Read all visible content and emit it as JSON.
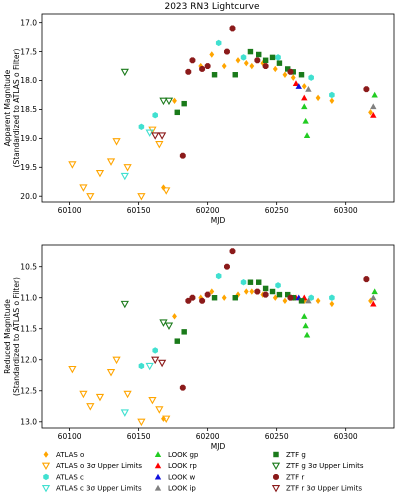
{
  "title": "2023 RN3 Lightcurve",
  "chart_data": [
    {
      "type": "scatter",
      "name": "apparent",
      "xlabel": "MJD",
      "ylabel_lines": [
        "Apparent Magnitude",
        "(Standardized to ATLAS o Filter)"
      ],
      "xlim": [
        60080,
        60335
      ],
      "ylim": [
        20.1,
        16.85
      ],
      "y_inverted": true,
      "x_ticks": [
        60100,
        60150,
        60200,
        60250,
        60300
      ],
      "y_ticks": [
        17.0,
        17.5,
        18.0,
        18.5,
        19.0,
        19.5,
        20.0
      ],
      "y_tick_labels": [
        "17.0",
        "17.5",
        "18.0",
        "18.5",
        "19.0",
        "19.5",
        "20.0"
      ],
      "series": [
        {
          "key": "atlas_o",
          "points": [
            [
              60168,
              19.85
            ],
            [
              60176,
              18.35
            ],
            [
              60195,
              17.75
            ],
            [
              60203,
              17.55
            ],
            [
              60212,
              17.75
            ],
            [
              60222,
              17.65
            ],
            [
              60228,
              17.7
            ],
            [
              60232,
              17.75
            ],
            [
              60240,
              17.7
            ],
            [
              60249,
              17.8
            ],
            [
              60256,
              17.9
            ],
            [
              60262,
              17.95
            ],
            [
              60270,
              18.1
            ],
            [
              60280,
              18.3
            ],
            [
              60290,
              18.35
            ],
            [
              60318,
              18.55
            ]
          ]
        },
        {
          "key": "atlas_o_ul",
          "points": [
            [
              60102,
              19.45
            ],
            [
              60110,
              19.85
            ],
            [
              60115,
              20.0
            ],
            [
              60122,
              19.6
            ],
            [
              60130,
              19.4
            ],
            [
              60134,
              19.05
            ],
            [
              60142,
              19.5
            ],
            [
              60152,
              20.0
            ],
            [
              60160,
              18.85
            ],
            [
              60165,
              19.1
            ],
            [
              60170,
              19.9
            ]
          ]
        },
        {
          "key": "atlas_c",
          "points": [
            [
              60152,
              18.8
            ],
            [
              60162,
              18.6
            ],
            [
              60208,
              17.35
            ],
            [
              60226,
              17.6
            ],
            [
              60251,
              17.6
            ],
            [
              60275,
              17.95
            ],
            [
              60290,
              18.25
            ]
          ]
        },
        {
          "key": "atlas_c_ul",
          "points": [
            [
              60140,
              19.65
            ],
            [
              60158,
              18.9
            ]
          ]
        },
        {
          "key": "look_gp",
          "points": [
            [
              60270,
              18.45
            ],
            [
              60271,
              18.7
            ],
            [
              60272,
              18.95
            ],
            [
              60321,
              18.25
            ]
          ]
        },
        {
          "key": "look_rp",
          "points": [
            [
              60264,
              18.05
            ],
            [
              60270,
              18.3
            ],
            [
              60320,
              18.6
            ]
          ]
        },
        {
          "key": "look_w",
          "points": [
            [
              60266,
              18.1
            ]
          ]
        },
        {
          "key": "look_ip",
          "points": [
            [
              60273,
              18.15
            ],
            [
              60320,
              18.45
            ]
          ]
        },
        {
          "key": "ztf_g",
          "points": [
            [
              60178,
              18.55
            ],
            [
              60183,
              18.4
            ],
            [
              60205,
              17.9
            ],
            [
              60220,
              17.9
            ],
            [
              60231,
              17.5
            ],
            [
              60237,
              17.55
            ],
            [
              60242,
              17.65
            ],
            [
              60247,
              17.6
            ],
            [
              60252,
              17.7
            ],
            [
              60258,
              17.8
            ],
            [
              60262,
              17.85
            ],
            [
              60268,
              17.9
            ]
          ]
        },
        {
          "key": "ztf_g_ul",
          "points": [
            [
              60140,
              17.85
            ],
            [
              60168,
              18.35
            ],
            [
              60172,
              18.35
            ]
          ]
        },
        {
          "key": "ztf_r",
          "points": [
            [
              60182,
              19.3
            ],
            [
              60186,
              17.85
            ],
            [
              60189,
              17.65
            ],
            [
              60196,
              17.8
            ],
            [
              60200,
              17.75
            ],
            [
              60214,
              17.5
            ],
            [
              60218,
              17.1
            ],
            [
              60236,
              17.65
            ],
            [
              60242,
              17.75
            ],
            [
              60260,
              17.85
            ],
            [
              60315,
              18.15
            ]
          ]
        },
        {
          "key": "ztf_r_ul",
          "points": [
            [
              60162,
              18.95
            ],
            [
              60167,
              18.95
            ]
          ]
        }
      ]
    },
    {
      "type": "scatter",
      "name": "reduced",
      "xlabel": "MJD",
      "ylabel_lines": [
        "Reduced Magnitude",
        "(Standardized to ATLAS o Filter)"
      ],
      "xlim": [
        60080,
        60335
      ],
      "ylim": [
        13.1,
        10.15
      ],
      "y_inverted": true,
      "x_ticks": [
        60100,
        60150,
        60200,
        60250,
        60300
      ],
      "y_ticks": [
        10.5,
        11.0,
        11.5,
        12.0,
        12.5,
        13.0
      ],
      "y_tick_labels": [
        "10.5",
        "11.0",
        "11.5",
        "12.0",
        "12.5",
        "13.0"
      ],
      "series": [
        {
          "key": "atlas_o",
          "points": [
            [
              60168,
              12.95
            ],
            [
              60176,
              11.3
            ],
            [
              60195,
              11.0
            ],
            [
              60203,
              10.9
            ],
            [
              60212,
              11.0
            ],
            [
              60222,
              10.95
            ],
            [
              60228,
              10.9
            ],
            [
              60232,
              10.9
            ],
            [
              60240,
              10.95
            ],
            [
              60249,
              11.0
            ],
            [
              60256,
              11.05
            ],
            [
              60262,
              11.0
            ],
            [
              60270,
              11.05
            ],
            [
              60280,
              11.05
            ],
            [
              60290,
              11.1
            ],
            [
              60318,
              11.05
            ]
          ]
        },
        {
          "key": "atlas_o_ul",
          "points": [
            [
              60102,
              12.15
            ],
            [
              60110,
              12.55
            ],
            [
              60115,
              12.75
            ],
            [
              60122,
              12.6
            ],
            [
              60130,
              12.2
            ],
            [
              60134,
              12.0
            ],
            [
              60142,
              12.55
            ],
            [
              60152,
              13.0
            ],
            [
              60160,
              12.65
            ],
            [
              60165,
              12.8
            ],
            [
              60170,
              12.95
            ]
          ]
        },
        {
          "key": "atlas_c",
          "points": [
            [
              60152,
              12.1
            ],
            [
              60162,
              11.85
            ],
            [
              60208,
              10.65
            ],
            [
              60226,
              10.75
            ],
            [
              60251,
              10.8
            ],
            [
              60275,
              11.0
            ],
            [
              60290,
              11.0
            ]
          ]
        },
        {
          "key": "atlas_c_ul",
          "points": [
            [
              60140,
              12.85
            ],
            [
              60158,
              12.1
            ]
          ]
        },
        {
          "key": "look_gp",
          "points": [
            [
              60270,
              11.3
            ],
            [
              60271,
              11.45
            ],
            [
              60272,
              11.6
            ],
            [
              60321,
              10.9
            ]
          ]
        },
        {
          "key": "look_rp",
          "points": [
            [
              60264,
              11.0
            ],
            [
              60270,
              11.0
            ],
            [
              60320,
              11.1
            ]
          ]
        },
        {
          "key": "look_w",
          "points": [
            [
              60266,
              11.0
            ]
          ]
        },
        {
          "key": "look_ip",
          "points": [
            [
              60273,
              11.05
            ],
            [
              60320,
              11.0
            ]
          ]
        },
        {
          "key": "ztf_g",
          "points": [
            [
              60178,
              11.7
            ],
            [
              60183,
              11.55
            ],
            [
              60205,
              11.0
            ],
            [
              60220,
              11.0
            ],
            [
              60231,
              10.75
            ],
            [
              60237,
              10.75
            ],
            [
              60242,
              10.85
            ],
            [
              60247,
              10.9
            ],
            [
              60252,
              10.95
            ],
            [
              60258,
              10.95
            ],
            [
              60262,
              11.0
            ],
            [
              60268,
              11.05
            ]
          ]
        },
        {
          "key": "ztf_g_ul",
          "points": [
            [
              60140,
              11.1
            ],
            [
              60168,
              11.4
            ],
            [
              60172,
              11.45
            ]
          ]
        },
        {
          "key": "ztf_r",
          "points": [
            [
              60182,
              12.45
            ],
            [
              60186,
              11.05
            ],
            [
              60189,
              11.0
            ],
            [
              60196,
              11.05
            ],
            [
              60200,
              10.95
            ],
            [
              60214,
              10.5
            ],
            [
              60218,
              10.25
            ],
            [
              60236,
              10.9
            ],
            [
              60242,
              10.95
            ],
            [
              60260,
              11.0
            ],
            [
              60315,
              10.7
            ]
          ]
        },
        {
          "key": "ztf_r_ul",
          "points": [
            [
              60162,
              12.0
            ],
            [
              60167,
              12.05
            ]
          ]
        }
      ]
    }
  ],
  "legend": [
    {
      "key": "atlas_o",
      "label": "ATLAS o",
      "color": "#FFA500",
      "marker": "diamond"
    },
    {
      "key": "atlas_o_ul",
      "label": "ATLAS o 3σ Upper Limits",
      "color": "#FFA500",
      "marker": "triangle-down-open"
    },
    {
      "key": "atlas_c",
      "label": "ATLAS c",
      "color": "#40E0D0",
      "marker": "hexagon"
    },
    {
      "key": "atlas_c_ul",
      "label": "ATLAS c 3σ Upper Limits",
      "color": "#40E0D0",
      "marker": "triangle-down-open"
    },
    {
      "key": "look_gp",
      "label": "LOOK gp",
      "color": "#22CC22",
      "marker": "triangle-up"
    },
    {
      "key": "look_rp",
      "label": "LOOK rp",
      "color": "#FF0000",
      "marker": "triangle-up"
    },
    {
      "key": "look_w",
      "label": "LOOK w",
      "color": "#1010DD",
      "marker": "triangle-up"
    },
    {
      "key": "look_ip",
      "label": "LOOK ip",
      "color": "#808080",
      "marker": "triangle-up"
    },
    {
      "key": "ztf_g",
      "label": "ZTF g",
      "color": "#1A7A1A",
      "marker": "square"
    },
    {
      "key": "ztf_g_ul",
      "label": "ZTF g 3σ Upper Limits",
      "color": "#1A7A1A",
      "marker": "triangle-down-open"
    },
    {
      "key": "ztf_r",
      "label": "ZTF r",
      "color": "#8B1A1A",
      "marker": "octagon"
    },
    {
      "key": "ztf_r_ul",
      "label": "ZTF r 3σ Upper Limits",
      "color": "#8B1A1A",
      "marker": "triangle-down-open"
    }
  ]
}
